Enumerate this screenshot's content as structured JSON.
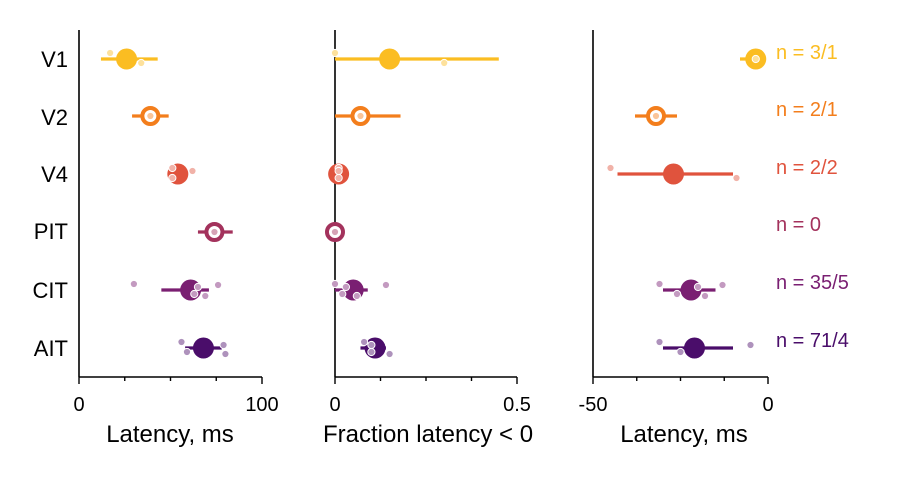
{
  "areas": [
    "V1",
    "V2",
    "V4",
    "PIT",
    "CIT",
    "AIT"
  ],
  "colors": {
    "V1": "#fbbd22",
    "V2": "#f37e1c",
    "V4": "#e0533d",
    "PIT": "#a3325c",
    "CIT": "#7a1f72",
    "AIT": "#4a0d6a",
    "axis": "#000000"
  },
  "n_labels": [
    "n = 3/1",
    "n = 2/1",
    "n = 2/2",
    "n = 0",
    "n = 35/5",
    "n = 71/4"
  ],
  "chart_data": [
    {
      "type": "scatter",
      "xlabel": "Latency, ms",
      "xlim": [
        0,
        100
      ],
      "xticks": [
        "0",
        "100"
      ],
      "rows": [
        {
          "area": "V1",
          "mean": 26,
          "lo": 12,
          "hi": 43,
          "hollow": false,
          "points": [
            17,
            34
          ]
        },
        {
          "area": "V2",
          "mean": 39,
          "lo": 29,
          "hi": 49,
          "hollow": true,
          "points": [
            39
          ]
        },
        {
          "area": "V4",
          "mean": 54,
          "lo": 50,
          "hi": 59,
          "hollow": false,
          "points": [
            51,
            51,
            62
          ]
        },
        {
          "area": "PIT",
          "mean": 74,
          "lo": 65,
          "hi": 84,
          "hollow": true,
          "points": [
            74
          ]
        },
        {
          "area": "CIT",
          "mean": 61,
          "lo": 45,
          "hi": 71,
          "hollow": false,
          "points": [
            30,
            63,
            65,
            69,
            76
          ]
        },
        {
          "area": "AIT",
          "mean": 68,
          "lo": 58,
          "hi": 78,
          "hollow": false,
          "points": [
            56,
            59,
            79,
            80
          ]
        }
      ]
    },
    {
      "type": "scatter",
      "xlabel": "Fraction latency < 0",
      "xlim": [
        0,
        0.5
      ],
      "xticks": [
        "0",
        "0.5"
      ],
      "rows": [
        {
          "area": "V1",
          "mean": 0.15,
          "lo": 0.0,
          "hi": 0.45,
          "hollow": false,
          "points": [
            0.0,
            0.3
          ]
        },
        {
          "area": "V2",
          "mean": 0.07,
          "lo": 0.0,
          "hi": 0.18,
          "hollow": true,
          "points": [
            0.07
          ]
        },
        {
          "area": "V4",
          "mean": 0.01,
          "lo": 0.0,
          "hi": 0.02,
          "hollow": false,
          "points": [
            0.01,
            0.01,
            0.01
          ]
        },
        {
          "area": "PIT",
          "mean": 0.0,
          "lo": 0.0,
          "hi": 0.0,
          "hollow": true,
          "points": [
            0.0
          ]
        },
        {
          "area": "CIT",
          "mean": 0.05,
          "lo": 0.0,
          "hi": 0.09,
          "hollow": false,
          "points": [
            0.0,
            0.02,
            0.03,
            0.06,
            0.14
          ]
        },
        {
          "area": "AIT",
          "mean": 0.11,
          "lo": 0.07,
          "hi": 0.14,
          "hollow": false,
          "points": [
            0.08,
            0.1,
            0.1,
            0.15
          ]
        }
      ]
    },
    {
      "type": "scatter",
      "xlabel": "Latency, ms",
      "xlim": [
        -50,
        0
      ],
      "xticks": [
        "-50",
        "0"
      ],
      "rows": [
        {
          "area": "V1",
          "mean": -3.5,
          "lo": -8,
          "hi": -3,
          "hollow": false,
          "points": [
            -3.5
          ]
        },
        {
          "area": "V2",
          "mean": -32,
          "lo": -38,
          "hi": -26,
          "hollow": true,
          "points": [
            -32
          ]
        },
        {
          "area": "V4",
          "mean": -27,
          "lo": -43,
          "hi": -10,
          "hollow": false,
          "points": [
            -45,
            -9
          ]
        },
        {
          "area": "PIT",
          "mean": null,
          "lo": null,
          "hi": null,
          "hollow": false,
          "points": []
        },
        {
          "area": "CIT",
          "mean": -22,
          "lo": -30,
          "hi": -15,
          "hollow": false,
          "points": [
            -31,
            -26,
            -20,
            -18,
            -13
          ]
        },
        {
          "area": "AIT",
          "mean": -21,
          "lo": -30,
          "hi": -10,
          "hollow": false,
          "points": [
            -31,
            -25,
            -5
          ]
        }
      ]
    }
  ]
}
